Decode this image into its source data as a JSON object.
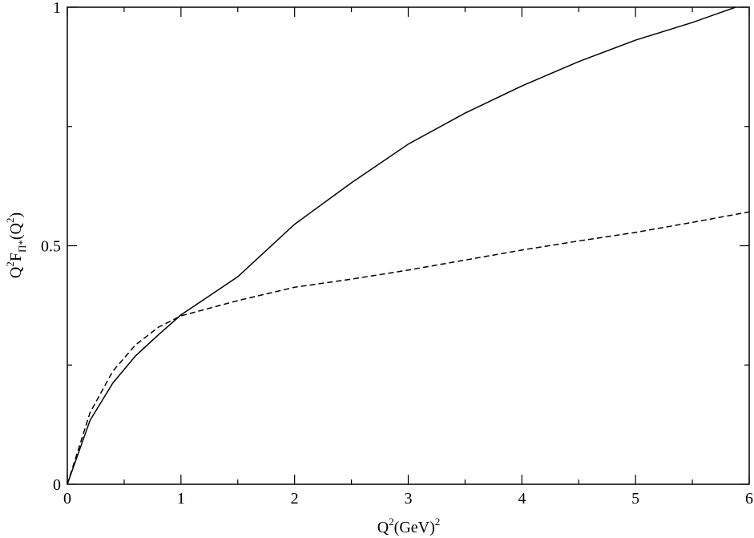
{
  "chart_data": {
    "type": "line",
    "xlabel": [
      "Q",
      "2",
      "(GeV)",
      "2"
    ],
    "ylabel": [
      "Q",
      "2",
      "F",
      "Π*",
      "(Q",
      "2",
      ")"
    ],
    "xlim": [
      0,
      6
    ],
    "ylim": [
      0,
      1
    ],
    "xticks": [
      0,
      1,
      2,
      3,
      4,
      5,
      6
    ],
    "yticks": [
      0,
      0.5,
      1
    ],
    "xticks_minor": [
      0.5,
      1.5,
      2.5,
      3.5,
      4.5,
      5.5
    ],
    "yticks_minor": [
      0.25,
      0.75
    ],
    "series": [
      {
        "color": "#000000",
        "dash": "solid",
        "x": [
          0,
          0.2,
          0.4,
          0.6,
          0.8,
          1.0,
          1.5,
          2,
          2.5,
          3,
          3.5,
          4,
          4.5,
          5,
          5.5,
          5.88
        ],
        "values": [
          0,
          0.134,
          0.212,
          0.269,
          0.313,
          0.355,
          0.435,
          0.545,
          0.632,
          0.713,
          0.778,
          0.835,
          0.886,
          0.931,
          0.968,
          1.0
        ]
      },
      {
        "color": "#000000",
        "dash": "dashed",
        "x": [
          0,
          0.2,
          0.4,
          0.6,
          0.8,
          1.0,
          1.5,
          2,
          2.5,
          3,
          3.5,
          4,
          4.5,
          5,
          5.5,
          6
        ],
        "values": [
          0,
          0.15,
          0.237,
          0.292,
          0.329,
          0.353,
          0.385,
          0.413,
          0.43,
          0.449,
          0.47,
          0.491,
          0.51,
          0.528,
          0.549,
          0.571
        ]
      }
    ]
  }
}
